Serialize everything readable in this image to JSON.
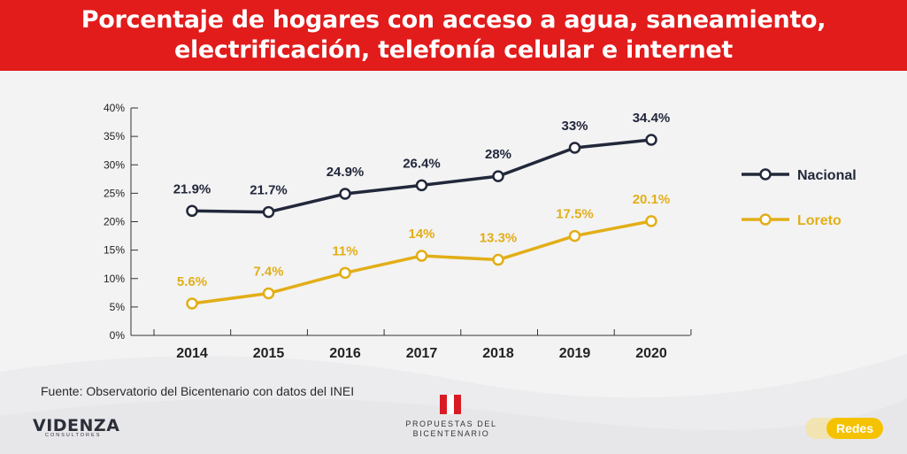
{
  "header": {
    "title_line1": "Porcentaje de hogares con acceso a agua, saneamiento,",
    "title_line2": "electrificación, telefonía celular e internet"
  },
  "colors": {
    "header_bg": "#e21b1b",
    "nacional": "#22283a",
    "loreto": "#e2ae17"
  },
  "chart_data": {
    "type": "line",
    "x": [
      "2014",
      "2015",
      "2016",
      "2017",
      "2018",
      "2019",
      "2020"
    ],
    "series": [
      {
        "name": "Nacional",
        "values": [
          21.9,
          21.7,
          24.9,
          26.4,
          28,
          33,
          34.4
        ],
        "labels": [
          "21.9%",
          "21.7%",
          "24.9%",
          "26.4%",
          "28%",
          "33%",
          "34.4%"
        ]
      },
      {
        "name": "Loreto",
        "values": [
          5.6,
          7.4,
          11,
          14,
          13.3,
          17.5,
          20.1
        ],
        "labels": [
          "5.6%",
          "7.4%",
          "11%",
          "14%",
          "13.3%",
          "17.5%",
          "20.1%"
        ]
      }
    ],
    "ylim": [
      0,
      40
    ],
    "yticks": [
      0,
      5,
      10,
      15,
      20,
      25,
      30,
      35,
      40
    ],
    "ytick_labels": [
      "0%",
      "5%",
      "10%",
      "15%",
      "20%",
      "25%",
      "30%",
      "35%",
      "40%"
    ],
    "legend": "right"
  },
  "footer": {
    "source": "Fuente: Observatorio del Bicentenario con datos del INEI",
    "logo_videnza": "VIDENZA",
    "logo_videnza_sub": "CONSULTORES",
    "logo_prop_line1": "PROPUESTAS DEL",
    "logo_prop_line2": "BICENTENARIO",
    "redes_label": "Redes"
  }
}
